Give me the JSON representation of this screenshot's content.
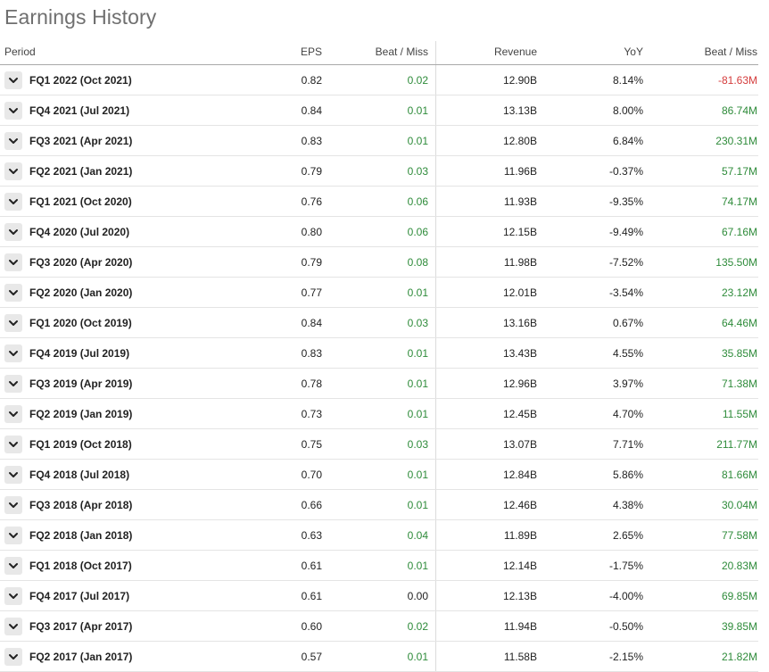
{
  "title": "Earnings History",
  "colors": {
    "positive": "#2e8b3a",
    "negative": "#d43b3b",
    "neutral": "#222222"
  },
  "columns": {
    "period": "Period",
    "eps": "EPS",
    "eps_beat_miss": "Beat / Miss",
    "revenue": "Revenue",
    "yoy": "YoY",
    "revenue_beat_miss": "Beat / Miss"
  },
  "rows": [
    {
      "period": "FQ1 2022 (Oct 2021)",
      "eps": "0.82",
      "eps_bm": "0.02",
      "eps_bm_sign": "pos",
      "revenue": "12.90B",
      "yoy": "8.14%",
      "rev_bm": "-81.63M",
      "rev_bm_sign": "neg"
    },
    {
      "period": "FQ4 2021 (Jul 2021)",
      "eps": "0.84",
      "eps_bm": "0.01",
      "eps_bm_sign": "pos",
      "revenue": "13.13B",
      "yoy": "8.00%",
      "rev_bm": "86.74M",
      "rev_bm_sign": "pos"
    },
    {
      "period": "FQ3 2021 (Apr 2021)",
      "eps": "0.83",
      "eps_bm": "0.01",
      "eps_bm_sign": "pos",
      "revenue": "12.80B",
      "yoy": "6.84%",
      "rev_bm": "230.31M",
      "rev_bm_sign": "pos"
    },
    {
      "period": "FQ2 2021 (Jan 2021)",
      "eps": "0.79",
      "eps_bm": "0.03",
      "eps_bm_sign": "pos",
      "revenue": "11.96B",
      "yoy": "-0.37%",
      "rev_bm": "57.17M",
      "rev_bm_sign": "pos"
    },
    {
      "period": "FQ1 2021 (Oct 2020)",
      "eps": "0.76",
      "eps_bm": "0.06",
      "eps_bm_sign": "pos",
      "revenue": "11.93B",
      "yoy": "-9.35%",
      "rev_bm": "74.17M",
      "rev_bm_sign": "pos"
    },
    {
      "period": "FQ4 2020 (Jul 2020)",
      "eps": "0.80",
      "eps_bm": "0.06",
      "eps_bm_sign": "pos",
      "revenue": "12.15B",
      "yoy": "-9.49%",
      "rev_bm": "67.16M",
      "rev_bm_sign": "pos"
    },
    {
      "period": "FQ3 2020 (Apr 2020)",
      "eps": "0.79",
      "eps_bm": "0.08",
      "eps_bm_sign": "pos",
      "revenue": "11.98B",
      "yoy": "-7.52%",
      "rev_bm": "135.50M",
      "rev_bm_sign": "pos"
    },
    {
      "period": "FQ2 2020 (Jan 2020)",
      "eps": "0.77",
      "eps_bm": "0.01",
      "eps_bm_sign": "pos",
      "revenue": "12.01B",
      "yoy": "-3.54%",
      "rev_bm": "23.12M",
      "rev_bm_sign": "pos"
    },
    {
      "period": "FQ1 2020 (Oct 2019)",
      "eps": "0.84",
      "eps_bm": "0.03",
      "eps_bm_sign": "pos",
      "revenue": "13.16B",
      "yoy": "0.67%",
      "rev_bm": "64.46M",
      "rev_bm_sign": "pos"
    },
    {
      "period": "FQ4 2019 (Jul 2019)",
      "eps": "0.83",
      "eps_bm": "0.01",
      "eps_bm_sign": "pos",
      "revenue": "13.43B",
      "yoy": "4.55%",
      "rev_bm": "35.85M",
      "rev_bm_sign": "pos"
    },
    {
      "period": "FQ3 2019 (Apr 2019)",
      "eps": "0.78",
      "eps_bm": "0.01",
      "eps_bm_sign": "pos",
      "revenue": "12.96B",
      "yoy": "3.97%",
      "rev_bm": "71.38M",
      "rev_bm_sign": "pos"
    },
    {
      "period": "FQ2 2019 (Jan 2019)",
      "eps": "0.73",
      "eps_bm": "0.01",
      "eps_bm_sign": "pos",
      "revenue": "12.45B",
      "yoy": "4.70%",
      "rev_bm": "11.55M",
      "rev_bm_sign": "pos"
    },
    {
      "period": "FQ1 2019 (Oct 2018)",
      "eps": "0.75",
      "eps_bm": "0.03",
      "eps_bm_sign": "pos",
      "revenue": "13.07B",
      "yoy": "7.71%",
      "rev_bm": "211.77M",
      "rev_bm_sign": "pos"
    },
    {
      "period": "FQ4 2018 (Jul 2018)",
      "eps": "0.70",
      "eps_bm": "0.01",
      "eps_bm_sign": "pos",
      "revenue": "12.84B",
      "yoy": "5.86%",
      "rev_bm": "81.66M",
      "rev_bm_sign": "pos"
    },
    {
      "period": "FQ3 2018 (Apr 2018)",
      "eps": "0.66",
      "eps_bm": "0.01",
      "eps_bm_sign": "pos",
      "revenue": "12.46B",
      "yoy": "4.38%",
      "rev_bm": "30.04M",
      "rev_bm_sign": "pos"
    },
    {
      "period": "FQ2 2018 (Jan 2018)",
      "eps": "0.63",
      "eps_bm": "0.04",
      "eps_bm_sign": "pos",
      "revenue": "11.89B",
      "yoy": "2.65%",
      "rev_bm": "77.58M",
      "rev_bm_sign": "pos"
    },
    {
      "period": "FQ1 2018 (Oct 2017)",
      "eps": "0.61",
      "eps_bm": "0.01",
      "eps_bm_sign": "pos",
      "revenue": "12.14B",
      "yoy": "-1.75%",
      "rev_bm": "20.83M",
      "rev_bm_sign": "pos"
    },
    {
      "period": "FQ4 2017 (Jul 2017)",
      "eps": "0.61",
      "eps_bm": "0.00",
      "eps_bm_sign": "neutral",
      "revenue": "12.13B",
      "yoy": "-4.00%",
      "rev_bm": "69.85M",
      "rev_bm_sign": "pos"
    },
    {
      "period": "FQ3 2017 (Apr 2017)",
      "eps": "0.60",
      "eps_bm": "0.02",
      "eps_bm_sign": "pos",
      "revenue": "11.94B",
      "yoy": "-0.50%",
      "rev_bm": "39.85M",
      "rev_bm_sign": "pos"
    },
    {
      "period": "FQ2 2017 (Jan 2017)",
      "eps": "0.57",
      "eps_bm": "0.01",
      "eps_bm_sign": "pos",
      "revenue": "11.58B",
      "yoy": "-2.15%",
      "rev_bm": "21.82M",
      "rev_bm_sign": "pos"
    }
  ]
}
